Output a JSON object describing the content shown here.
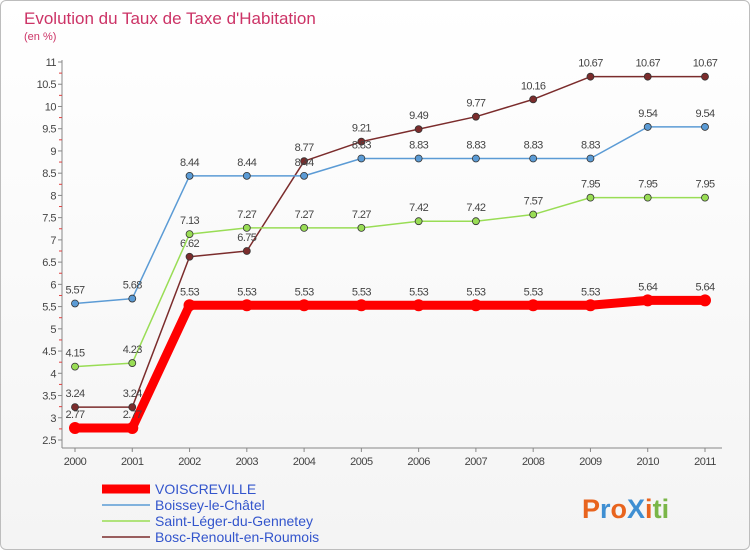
{
  "chart_data": {
    "type": "line",
    "title": "Evolution du Taux de Taxe d'Habitation",
    "subtitle": "(en %)",
    "x": [
      "2000",
      "2001",
      "2002",
      "2003",
      "2004",
      "2005",
      "2006",
      "2007",
      "2008",
      "2009",
      "2010",
      "2011"
    ],
    "ylim": [
      2.5,
      11
    ],
    "yticks": [
      "2.5",
      "3",
      "3.5",
      "4",
      "4.5",
      "5",
      "5.5",
      "6",
      "6.5",
      "7",
      "7.5",
      "8",
      "8.5",
      "9",
      "9.5",
      "10",
      "10.5",
      "11"
    ],
    "grid": false,
    "legend_position": "bottom-left",
    "series": [
      {
        "name": "VOISCREVILLE",
        "color": "#ff0000",
        "values": [
          2.77,
          2.77,
          5.53,
          5.53,
          5.53,
          5.53,
          5.53,
          5.53,
          5.53,
          5.53,
          5.64,
          5.64
        ],
        "labels": [
          "2.77",
          "2.77",
          "5.53",
          "5.53",
          "5.53",
          "5.53",
          "5.53",
          "5.53",
          "5.53",
          "5.53",
          "5.64",
          "5.64"
        ]
      },
      {
        "name": "Boissey-le-Châtel",
        "color": "#5b9bd5",
        "values": [
          5.57,
          5.68,
          8.44,
          8.44,
          8.44,
          8.83,
          8.83,
          8.83,
          8.83,
          8.83,
          9.54,
          9.54
        ],
        "labels": [
          "5.57",
          "5.68",
          "8.44",
          "8.44",
          "8.44",
          "8.83",
          "8.83",
          "8.83",
          "8.83",
          "8.83",
          "9.54",
          "9.54"
        ]
      },
      {
        "name": "Saint-Léger-du-Gennetey",
        "color": "#99dd55",
        "values": [
          4.15,
          4.23,
          7.13,
          7.27,
          7.27,
          7.27,
          7.42,
          7.42,
          7.57,
          7.95,
          7.95,
          7.95
        ],
        "labels": [
          "4.15",
          "4.23",
          "7.13",
          "7.27",
          "7.27",
          "7.27",
          "7.42",
          "7.42",
          "7.57",
          "7.95",
          "7.95",
          "7.95"
        ]
      },
      {
        "name": "Bosc-Renoult-en-Roumois",
        "color": "#7b2c2c",
        "values": [
          3.24,
          3.24,
          6.62,
          6.75,
          8.77,
          9.21,
          9.49,
          9.77,
          10.16,
          10.67,
          10.67,
          10.67
        ],
        "labels": [
          "3.24",
          "3.24",
          "6.62",
          "6.75",
          "8.77",
          "9.21",
          "9.49",
          "9.77",
          "10.16",
          "10.67",
          "10.67",
          "10.67"
        ]
      }
    ]
  },
  "branding": {
    "text": "ProXiti",
    "colors": [
      "#e8641e",
      "#3f8fd2",
      "#e8641e",
      "#3f8fd2",
      "#e8641e",
      "#7ab648",
      "#7ab648"
    ]
  },
  "colors": {
    "title": "#cc3366",
    "axis": "#888888",
    "tick_label": "#444444",
    "legend_text": "#3355cc"
  }
}
